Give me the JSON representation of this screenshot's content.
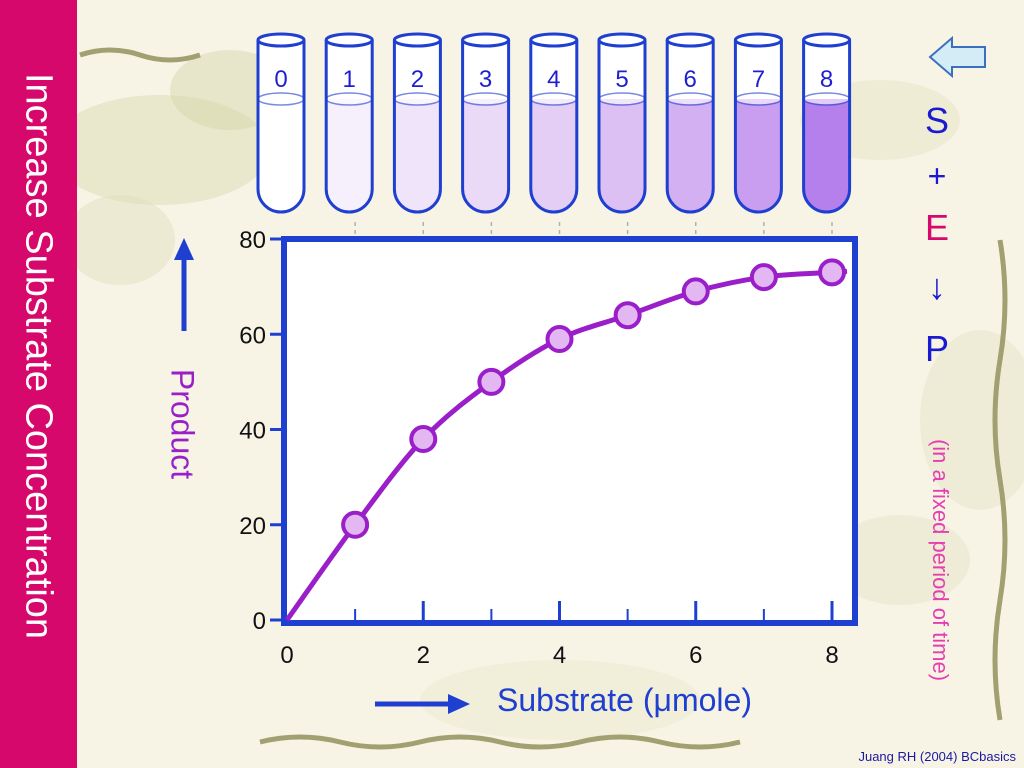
{
  "slide": {
    "side_title": "Increase Substrate Concentration",
    "reaction": {
      "s": "S",
      "plus": "+",
      "e": "E",
      "arrow": "↓",
      "p": "P"
    },
    "period_note": "(in a fixed period of time)",
    "credit": "Juang RH (2004) BCbasics",
    "nav_icon": "left-arrow-icon",
    "colors": {
      "sidebar": "#d6086c",
      "axis_blue": "#1f3fd0",
      "curve": "#9a1fc9",
      "point_fill": "#e3b8f2",
      "eq_blue": "#1a1ad0",
      "eq_magenta": "#d6086c",
      "note_pink": "#e63eb0"
    }
  },
  "chart_data": {
    "type": "line",
    "ylabel": "Product",
    "xlabel": "Substrate (μmole)",
    "xlim": [
      0,
      8
    ],
    "ylim": [
      0,
      80
    ],
    "x_ticks": [
      0,
      2,
      4,
      6,
      8
    ],
    "y_ticks": [
      0,
      20,
      40,
      60,
      80
    ],
    "grid": false,
    "points": [
      {
        "x": 0,
        "y": 0
      },
      {
        "x": 1,
        "y": 20
      },
      {
        "x": 2,
        "y": 38
      },
      {
        "x": 3,
        "y": 50
      },
      {
        "x": 4,
        "y": 59
      },
      {
        "x": 5,
        "y": 64
      },
      {
        "x": 6,
        "y": 69
      },
      {
        "x": 7,
        "y": 72
      },
      {
        "x": 8,
        "y": 73
      }
    ],
    "tubes": [
      "0",
      "1",
      "2",
      "3",
      "4",
      "5",
      "6",
      "7",
      "8"
    ],
    "tube_colors": [
      "#ffffff",
      "#f6effc",
      "#f0e4fa",
      "#eadaf8",
      "#e4cef6",
      "#dcc0f4",
      "#d3b0f2",
      "#c99ef0",
      "#b580ec"
    ]
  }
}
